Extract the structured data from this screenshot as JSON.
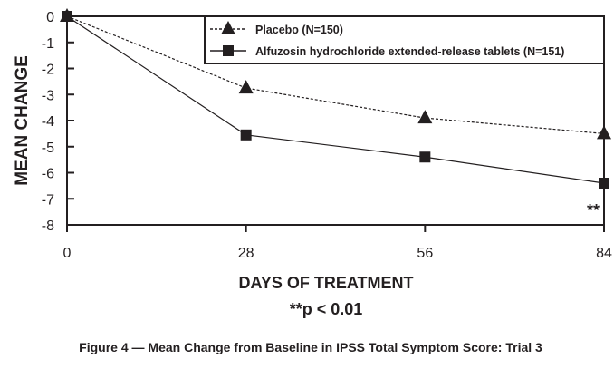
{
  "chart_data": {
    "type": "line",
    "title": "Figure 4 — Mean Change from Baseline in IPSS Total Symptom Score: Trial 3",
    "xlabel": "DAYS OF TREATMENT",
    "xlabel_note": "**p < 0.01",
    "ylabel": "MEAN CHANGE",
    "x": [
      0,
      28,
      56,
      84
    ],
    "xticks": [
      "0",
      "28",
      "56",
      "84"
    ],
    "yticks": [
      "0",
      "-1",
      "-2",
      "-3",
      "-4",
      "-5",
      "-6",
      "-7",
      "-8"
    ],
    "xlim": [
      0,
      84
    ],
    "ylim": [
      -8,
      0
    ],
    "grid": false,
    "legend_position": "top-right",
    "series": [
      {
        "name": "Placebo (N=150)",
        "values": [
          0,
          -2.75,
          -3.9,
          -4.5
        ],
        "marker": "triangle",
        "line": "dashed",
        "color": "#231f20"
      },
      {
        "name": "Alfuzosin hydrochloride extended-release tablets (N=151)",
        "values": [
          0,
          -4.55,
          -5.4,
          -6.4
        ],
        "marker": "square",
        "line": "solid",
        "color": "#231f20"
      }
    ],
    "annotations": [
      {
        "text": "**",
        "x": 84,
        "y": -7.3
      }
    ]
  }
}
